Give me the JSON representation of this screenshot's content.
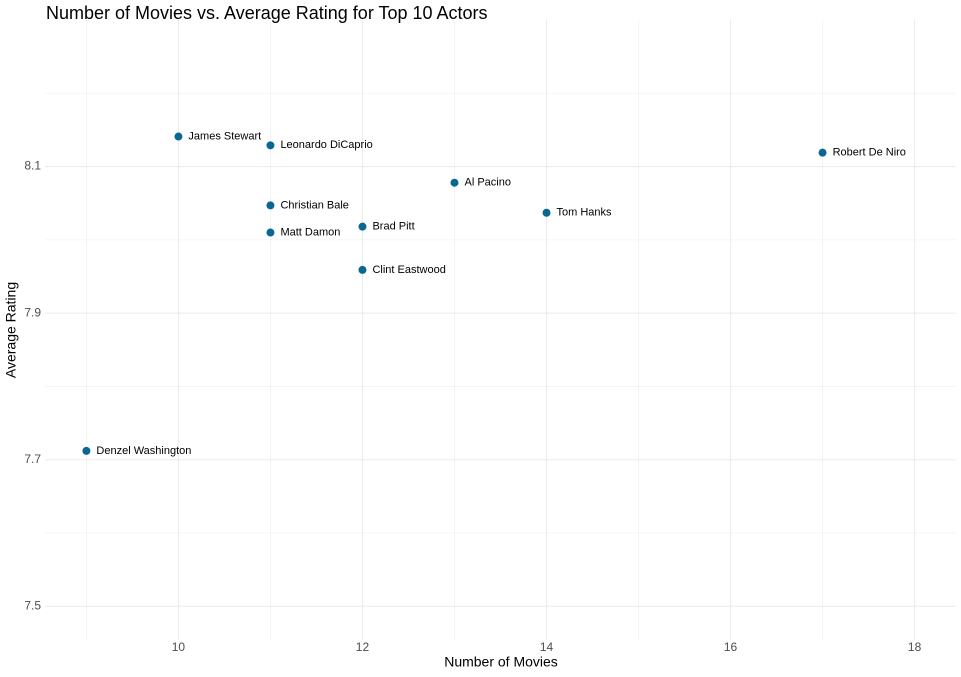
{
  "chart_data": {
    "type": "scatter",
    "title": "Number of Movies vs. Average Rating for Top 10 Actors",
    "x_label": "Number of Movies",
    "y_label": "Average Rating",
    "labels": [
      "James Stewart",
      "Leonardo DiCaprio",
      "Robert De Niro",
      "Al Pacino",
      "Tom Hanks",
      "Christian Bale",
      "Matt Damon",
      "Brad Pitt",
      "Clint Eastwood",
      "Denzel Washington"
    ],
    "x": [
      10,
      11,
      17,
      13,
      14,
      11,
      11,
      12,
      12,
      9
    ],
    "values": [
      8.141,
      8.129,
      8.119,
      8.078,
      8.037,
      8.047,
      8.01,
      8.018,
      7.959,
      7.712
    ],
    "color": "#0a6791",
    "xlim": [
      8.55,
      18.45
    ],
    "xticks": [
      10,
      12,
      14,
      16,
      18
    ],
    "ylim": [
      7.454,
      8.3
    ],
    "yticks": [
      7.5,
      7.7,
      7.9,
      8.1
    ],
    "grid": true
  }
}
